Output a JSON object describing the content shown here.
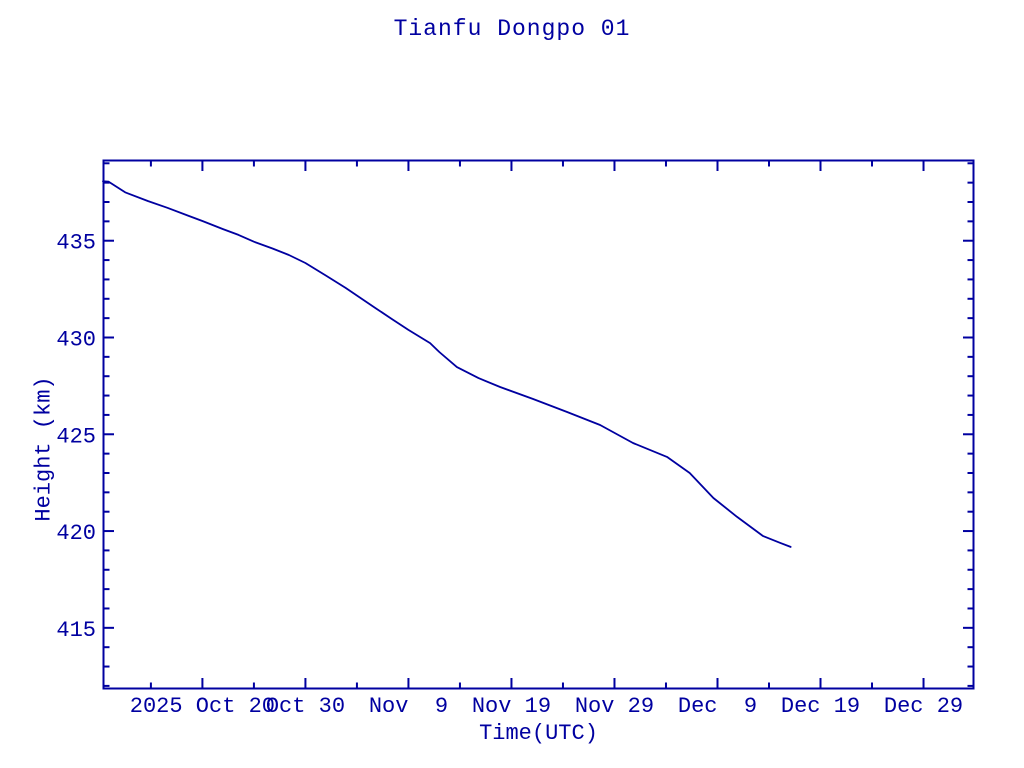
{
  "page": {
    "background": "#ffffff",
    "accent_color": "#0000A0"
  },
  "header": {
    "title": "Tianfu Dongpo 01"
  },
  "axes": {
    "x_label": "Time(UTC)",
    "y_label": "Height (km)"
  },
  "chart_data": {
    "type": "line",
    "title": "Tianfu Dongpo 01",
    "xlabel": "Time(UTC)",
    "ylabel": "Height (km)",
    "grid": false,
    "legend": null,
    "line_color": "#0000A0",
    "frame_color": "#0000A0",
    "x_unit": "days since 2025-10-10 00:00 UTC",
    "xlim_days": [
      0.35,
      84.9
    ],
    "ylim": [
      411.84,
      439.17
    ],
    "x_ticks_major": [
      {
        "day": 10,
        "label": "2025 Oct 20"
      },
      {
        "day": 20,
        "label": "Oct 30"
      },
      {
        "day": 30,
        "label": "Nov  9"
      },
      {
        "day": 40,
        "label": "Nov 19"
      },
      {
        "day": 50,
        "label": "Nov 29"
      },
      {
        "day": 60,
        "label": "Dec  9"
      },
      {
        "day": 70,
        "label": "Dec 19"
      },
      {
        "day": 80,
        "label": "Dec 29"
      }
    ],
    "x_ticks_minor_days": [
      5,
      15,
      25,
      35,
      45,
      55,
      65,
      75
    ],
    "y_ticks_major": [
      415,
      420,
      425,
      430,
      435
    ],
    "y_ticks_minor_min": 412,
    "y_ticks_minor_max": 439,
    "y_tick_minor_step": 1,
    "series": [
      {
        "name": "Height (km)",
        "points_day_height": [
          [
            0.35,
            438.07
          ],
          [
            0.9,
            438.05
          ],
          [
            2.5,
            437.5
          ],
          [
            4.7,
            437.05
          ],
          [
            6.6,
            436.7
          ],
          [
            8.6,
            436.3
          ],
          [
            10.0,
            436.02
          ],
          [
            12.0,
            435.6
          ],
          [
            13.5,
            435.3
          ],
          [
            15.0,
            434.95
          ],
          [
            16.8,
            434.6
          ],
          [
            18.4,
            434.26
          ],
          [
            20.0,
            433.85
          ],
          [
            22.0,
            433.2
          ],
          [
            23.9,
            432.56
          ],
          [
            26.8,
            431.52
          ],
          [
            28.4,
            430.95
          ],
          [
            30.0,
            430.39
          ],
          [
            32.1,
            429.71
          ],
          [
            33.0,
            429.25
          ],
          [
            34.7,
            428.47
          ],
          [
            36.8,
            427.9
          ],
          [
            38.9,
            427.44
          ],
          [
            42.1,
            426.82
          ],
          [
            45.4,
            426.15
          ],
          [
            48.6,
            425.48
          ],
          [
            51.8,
            424.55
          ],
          [
            55.1,
            423.83
          ],
          [
            57.3,
            423.0
          ],
          [
            59.6,
            421.71
          ],
          [
            61.9,
            420.73
          ],
          [
            64.4,
            419.75
          ],
          [
            66.1,
            419.39
          ],
          [
            67.1,
            419.18
          ]
        ]
      }
    ]
  }
}
